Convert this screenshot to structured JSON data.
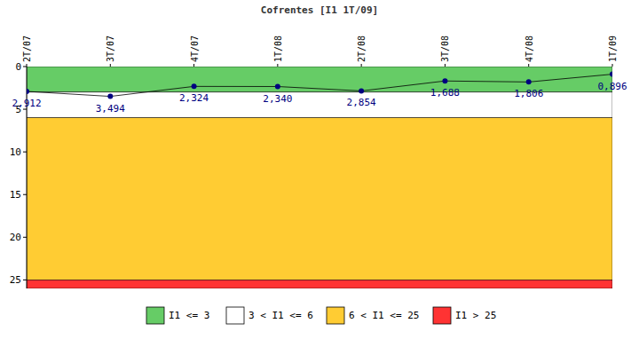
{
  "chart_data": {
    "type": "line",
    "title": "Cofrentes [I1 1T/09]",
    "categories": [
      "2T/07",
      "3T/07",
      "4T/07",
      "1T/08",
      "2T/08",
      "3T/08",
      "4T/08",
      "1T/09"
    ],
    "values": [
      2.912,
      3.494,
      2.324,
      2.34,
      2.854,
      1.688,
      1.806,
      0.896
    ],
    "value_labels": [
      "2,912",
      "3,494",
      "2,324",
      "2,340",
      "2,854",
      "1,688",
      "1,806",
      "0,896"
    ],
    "color": "#000080",
    "marker": "circle",
    "data_labels": true,
    "ylim": [
      0,
      26
    ],
    "yticks": [
      0,
      5,
      10,
      15,
      20,
      25
    ],
    "bands": [
      {
        "from": 0,
        "to": 3,
        "color": "#66cc66",
        "label": "I1 <= 3"
      },
      {
        "from": 3,
        "to": 6,
        "color": "#ffffff",
        "label": "3 < I1 <= 6"
      },
      {
        "from": 6,
        "to": 25,
        "color": "#ffcc33",
        "label": "6 < I1 <= 25"
      },
      {
        "from": 25,
        "to": 26,
        "color": "#ff3333",
        "label": "I1 > 25"
      }
    ]
  }
}
